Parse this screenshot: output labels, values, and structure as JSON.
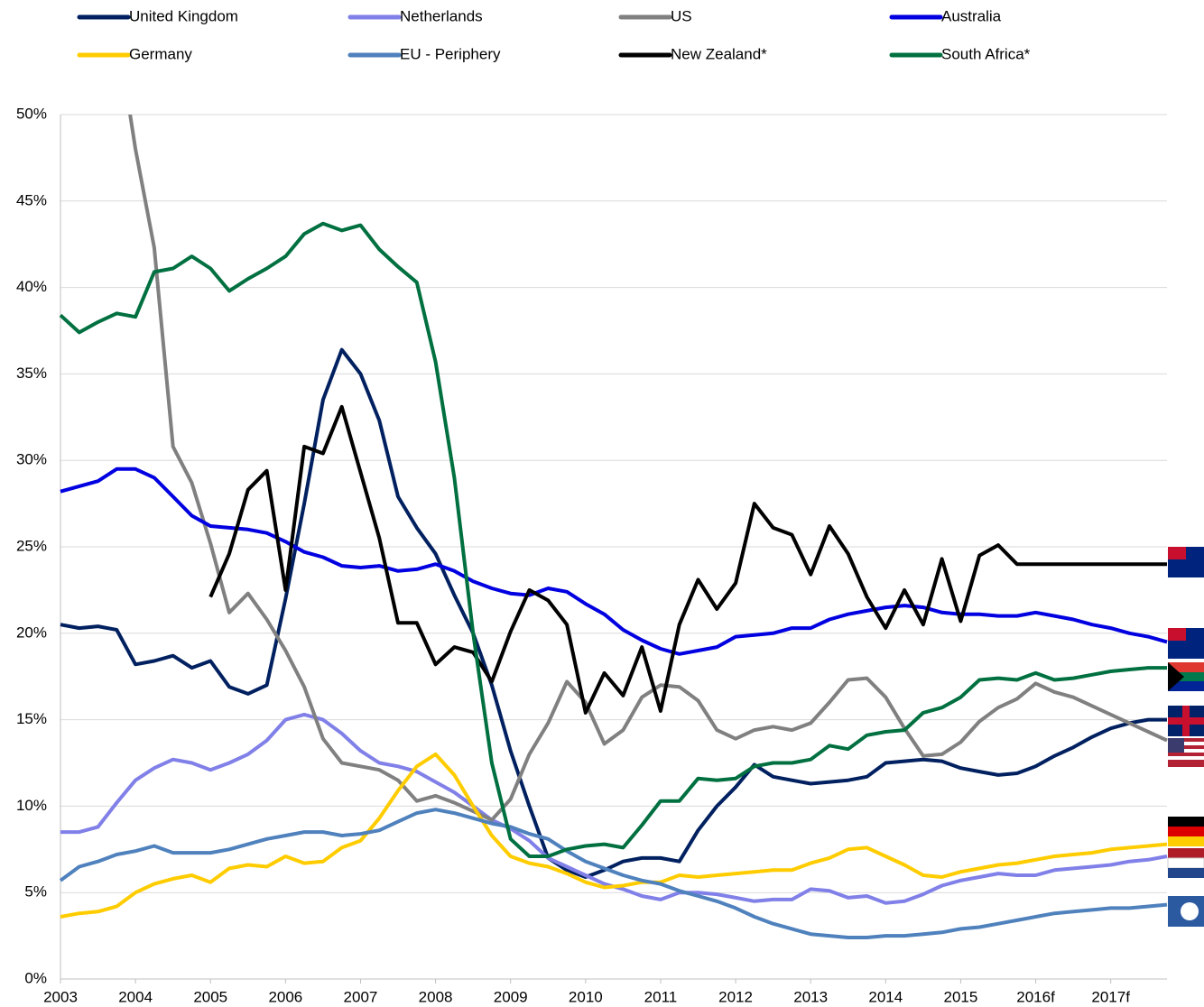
{
  "chart_data": {
    "type": "line",
    "categories": [
      "2003",
      null,
      null,
      null,
      "2004",
      null,
      null,
      null,
      "2005",
      null,
      null,
      null,
      "2006",
      null,
      null,
      null,
      "2007",
      null,
      null,
      null,
      "2008",
      null,
      null,
      null,
      "2009",
      null,
      null,
      null,
      "2010",
      null,
      null,
      null,
      "2011",
      null,
      null,
      null,
      "2012",
      null,
      null,
      null,
      "2013",
      null,
      null,
      null,
      "2014",
      null,
      null,
      null,
      "2015",
      null,
      null,
      null,
      "2016f",
      null,
      null,
      null,
      "2017f",
      null,
      null,
      null
    ],
    "ylim": [
      0,
      50
    ],
    "yticks": [
      {
        "value": 0,
        "label": "0%"
      },
      {
        "value": 5,
        "label": "5%"
      },
      {
        "value": 10,
        "label": "10%"
      },
      {
        "value": 15,
        "label": "15%"
      },
      {
        "value": 20,
        "label": "20%"
      },
      {
        "value": 25,
        "label": "25%"
      },
      {
        "value": 30,
        "label": "30%"
      },
      {
        "value": 35,
        "label": "35%"
      },
      {
        "value": 40,
        "label": "40%"
      },
      {
        "value": 45,
        "label": "45%"
      },
      {
        "value": 50,
        "label": "50%"
      }
    ],
    "grid": true,
    "legend": "top",
    "series": [
      {
        "name": "United Kingdom",
        "color": "#002060",
        "values": [
          20.5,
          20.3,
          20.4,
          20.2,
          18.2,
          18.4,
          18.7,
          18.0,
          18.4,
          16.9,
          16.5,
          17.0,
          22.0,
          27.5,
          33.5,
          36.4,
          35.0,
          32.3,
          27.9,
          26.1,
          24.6,
          22.2,
          20.0,
          17.0,
          13.2,
          10.0,
          7.0,
          6.3,
          5.9,
          6.3,
          6.8,
          7.0,
          7.0,
          6.8,
          8.6,
          10.0,
          11.1,
          12.4,
          11.7,
          11.5,
          11.3,
          11.4,
          11.5,
          11.7,
          12.5,
          12.6,
          12.7,
          12.6,
          12.2,
          12.0,
          11.8,
          11.9,
          12.3,
          12.9,
          13.4,
          14.0,
          14.5,
          14.8,
          15.0,
          15.0
        ]
      },
      {
        "name": "Netherlands",
        "color": "#8080e8",
        "values": [
          8.5,
          8.5,
          8.8,
          10.2,
          11.5,
          12.2,
          12.7,
          12.5,
          12.1,
          12.5,
          13.0,
          13.8,
          15.0,
          15.3,
          15.0,
          14.2,
          13.2,
          12.5,
          12.3,
          12.0,
          11.4,
          10.8,
          10.0,
          9.2,
          8.7,
          8.0,
          7.0,
          6.5,
          6.0,
          5.5,
          5.2,
          4.8,
          4.6,
          5.0,
          5.0,
          4.9,
          4.7,
          4.5,
          4.6,
          4.6,
          5.2,
          5.1,
          4.7,
          4.8,
          4.4,
          4.5,
          4.9,
          5.4,
          5.7,
          5.9,
          6.1,
          6.0,
          6.0,
          6.3,
          6.4,
          6.5,
          6.6,
          6.8,
          6.9,
          7.1
        ]
      },
      {
        "name": "US",
        "color": "#808080",
        "values": [
          null,
          null,
          null,
          55,
          48.0,
          42.3,
          30.8,
          28.7,
          25.2,
          21.2,
          22.3,
          20.8,
          19.0,
          16.9,
          13.9,
          12.5,
          12.3,
          12.1,
          11.5,
          10.3,
          10.6,
          10.2,
          9.7,
          9.2,
          10.4,
          13.0,
          14.8,
          17.2,
          16.0,
          13.6,
          14.4,
          16.3,
          17.0,
          16.9,
          16.1,
          14.4,
          13.9,
          14.4,
          14.6,
          14.4,
          14.8,
          16.0,
          17.3,
          17.4,
          16.3,
          14.5,
          12.9,
          13.0,
          13.7,
          14.9,
          15.7,
          16.2,
          17.1,
          16.6,
          16.3,
          15.8,
          15.3,
          14.8,
          14.3,
          13.8
        ]
      },
      {
        "name": "Australia",
        "color": "#0000e0",
        "values": [
          28.2,
          28.5,
          28.8,
          29.5,
          29.5,
          29.0,
          27.9,
          26.8,
          26.2,
          26.1,
          26.0,
          25.8,
          25.3,
          24.7,
          24.4,
          23.9,
          23.8,
          23.9,
          23.6,
          23.7,
          24.0,
          23.6,
          23.0,
          22.6,
          22.3,
          22.2,
          22.6,
          22.4,
          21.7,
          21.1,
          20.2,
          19.6,
          19.1,
          18.8,
          19.0,
          19.2,
          19.8,
          19.9,
          20.0,
          20.3,
          20.3,
          20.8,
          21.1,
          21.3,
          21.5,
          21.6,
          21.5,
          21.2,
          21.1,
          21.1,
          21.0,
          21.0,
          21.2,
          21.0,
          20.8,
          20.5,
          20.3,
          20.0,
          19.8,
          19.5
        ]
      },
      {
        "name": "Germany",
        "color": "#ffcc00",
        "values": [
          3.6,
          3.8,
          3.9,
          4.2,
          5.0,
          5.5,
          5.8,
          6.0,
          5.6,
          6.4,
          6.6,
          6.5,
          7.1,
          6.7,
          6.8,
          7.6,
          8.0,
          9.3,
          10.9,
          12.3,
          13.0,
          11.8,
          10.0,
          8.3,
          7.1,
          6.7,
          6.5,
          6.1,
          5.6,
          5.3,
          5.4,
          5.6,
          5.6,
          6.0,
          5.9,
          6.0,
          6.1,
          6.2,
          6.3,
          6.3,
          6.7,
          7.0,
          7.5,
          7.6,
          7.1,
          6.6,
          6.0,
          5.9,
          6.2,
          6.4,
          6.6,
          6.7,
          6.9,
          7.1,
          7.2,
          7.3,
          7.5,
          7.6,
          7.7,
          7.8
        ]
      },
      {
        "name": "EU - Periphery",
        "color": "#4f81bd",
        "values": [
          5.7,
          6.5,
          6.8,
          7.2,
          7.4,
          7.7,
          7.3,
          7.3,
          7.3,
          7.5,
          7.8,
          8.1,
          8.3,
          8.5,
          8.5,
          8.3,
          8.4,
          8.6,
          9.1,
          9.6,
          9.8,
          9.6,
          9.3,
          9.0,
          8.8,
          8.4,
          8.1,
          7.4,
          6.8,
          6.4,
          6.0,
          5.7,
          5.5,
          5.1,
          4.8,
          4.5,
          4.1,
          3.6,
          3.2,
          2.9,
          2.6,
          2.5,
          2.4,
          2.4,
          2.5,
          2.5,
          2.6,
          2.7,
          2.9,
          3.0,
          3.2,
          3.4,
          3.6,
          3.8,
          3.9,
          4.0,
          4.1,
          4.1,
          4.2,
          4.3
        ]
      },
      {
        "name": "New Zealand*",
        "color": "#000000",
        "values": [
          null,
          null,
          null,
          null,
          null,
          null,
          null,
          null,
          22.1,
          24.6,
          28.3,
          29.4,
          22.5,
          30.8,
          30.4,
          33.1,
          29.3,
          25.5,
          20.6,
          20.6,
          18.2,
          19.2,
          18.9,
          17.2,
          20.1,
          22.5,
          21.9,
          20.5,
          15.4,
          17.7,
          16.4,
          19.2,
          15.5,
          20.5,
          23.1,
          21.4,
          22.9,
          27.5,
          26.1,
          25.7,
          23.4,
          26.2,
          24.6,
          22.1,
          20.3,
          22.5,
          20.5,
          24.3,
          20.7,
          24.5,
          25.1,
          24.0,
          24.0,
          24.0,
          24.0,
          24.0,
          24.0,
          24.0,
          24.0,
          24.0
        ]
      },
      {
        "name": "South Africa*",
        "color": "#007040",
        "values": [
          38.4,
          37.4,
          38.0,
          38.5,
          38.3,
          40.9,
          41.1,
          41.8,
          41.1,
          39.8,
          40.5,
          41.1,
          41.8,
          43.1,
          43.7,
          43.3,
          43.6,
          42.2,
          41.2,
          40.3,
          35.7,
          29.0,
          20.0,
          12.5,
          8.1,
          7.1,
          7.1,
          7.5,
          7.7,
          7.8,
          7.6,
          8.9,
          10.3,
          10.3,
          11.6,
          11.5,
          11.6,
          12.3,
          12.5,
          12.5,
          12.7,
          13.5,
          13.3,
          14.1,
          14.3,
          14.4,
          15.4,
          15.7,
          16.3,
          17.3,
          17.4,
          17.3,
          17.7,
          17.3,
          17.4,
          17.6,
          17.8,
          17.9,
          18.0,
          18.0
        ]
      }
    ]
  }
}
